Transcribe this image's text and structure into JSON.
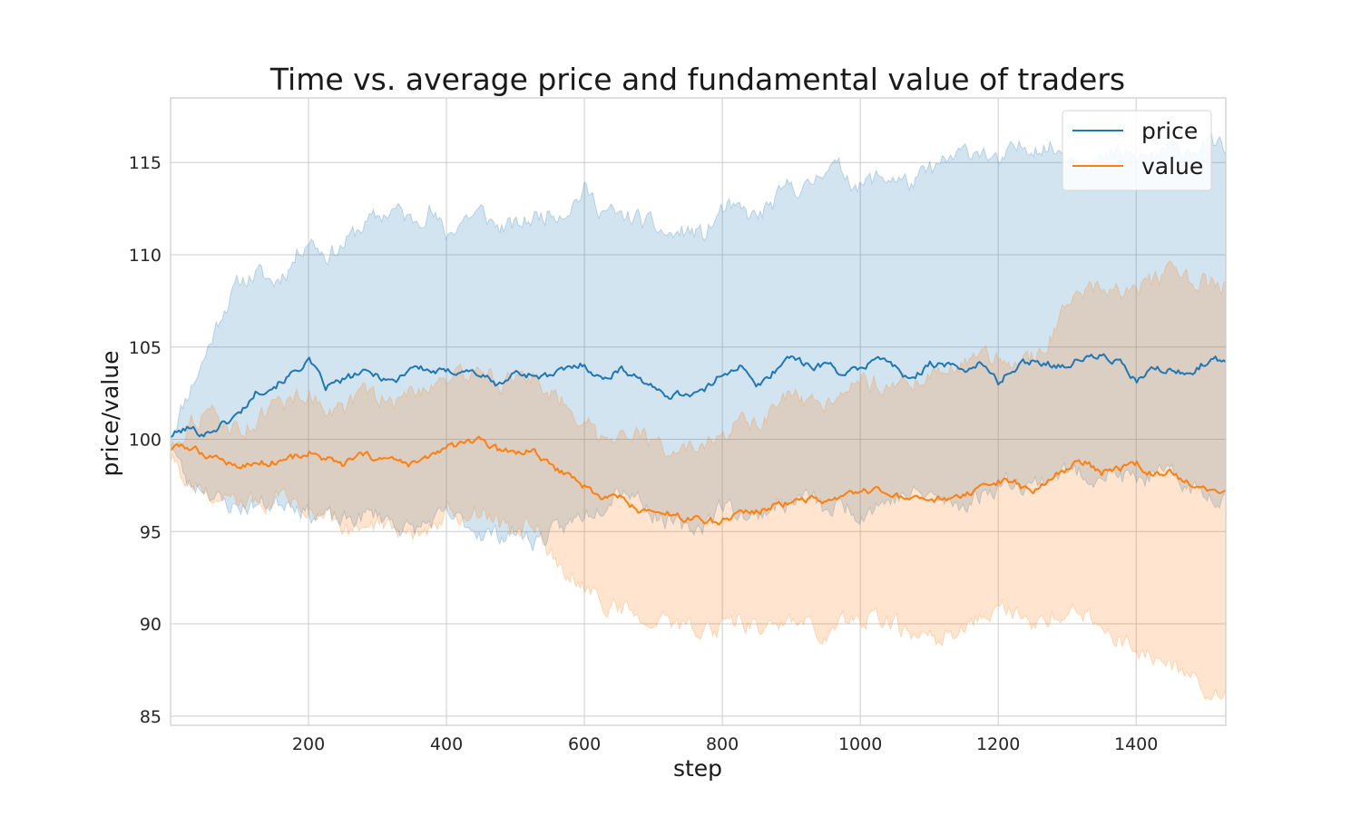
{
  "chart_data": {
    "type": "line",
    "title": "Time vs. average price and fundamental value of traders",
    "xlabel": "step",
    "ylabel": "price/value",
    "xlim": [
      0,
      1530
    ],
    "ylim": [
      84.5,
      118.5
    ],
    "xticks": [
      200,
      400,
      600,
      800,
      1000,
      1200,
      1400
    ],
    "yticks": [
      85,
      90,
      95,
      100,
      105,
      110,
      115
    ],
    "grid": true,
    "legend_position": "top-right",
    "x": [
      0,
      25,
      50,
      75,
      100,
      125,
      150,
      175,
      200,
      225,
      250,
      275,
      300,
      325,
      350,
      375,
      400,
      425,
      450,
      475,
      500,
      525,
      550,
      575,
      600,
      625,
      650,
      675,
      700,
      725,
      750,
      775,
      800,
      825,
      850,
      875,
      900,
      925,
      950,
      975,
      1000,
      1025,
      1050,
      1075,
      1100,
      1125,
      1150,
      1175,
      1200,
      1225,
      1250,
      1275,
      1300,
      1325,
      1350,
      1375,
      1400,
      1425,
      1450,
      1475,
      1500,
      1530
    ],
    "series": [
      {
        "name": "price",
        "color": "#1f77b4",
        "values": [
          100.2,
          100.6,
          100.3,
          100.8,
          101.4,
          102.6,
          102.9,
          103.5,
          104.3,
          102.8,
          103.2,
          103.6,
          103.5,
          103.1,
          104.0,
          103.7,
          103.6,
          103.8,
          103.5,
          102.9,
          103.6,
          103.5,
          103.4,
          103.8,
          104.1,
          103.2,
          103.8,
          103.5,
          102.7,
          102.4,
          102.5,
          102.6,
          103.6,
          104.0,
          102.8,
          103.7,
          104.6,
          103.9,
          104.1,
          103.6,
          103.7,
          104.6,
          103.9,
          103.1,
          104.2,
          104.0,
          103.8,
          104.1,
          103.1,
          103.9,
          104.3,
          104.1,
          104.0,
          104.4,
          104.5,
          104.2,
          103.1,
          103.8,
          103.7,
          103.5,
          104.2,
          104.3
        ],
        "upper": [
          100.3,
          102.5,
          104.5,
          107.0,
          108.5,
          109.0,
          108.5,
          109.5,
          111.0,
          110.0,
          110.5,
          111.5,
          112.0,
          112.5,
          111.8,
          112.5,
          111.0,
          112.0,
          112.3,
          111.5,
          111.5,
          112.0,
          112.3,
          112.5,
          113.5,
          112.5,
          112.0,
          112.0,
          111.5,
          111.0,
          111.3,
          111.0,
          112.5,
          112.3,
          112.0,
          112.8,
          113.8,
          113.5,
          115.0,
          114.5,
          113.7,
          114.2,
          114.2,
          113.8,
          114.5,
          115.0,
          115.5,
          115.8,
          114.8,
          115.7,
          116.0,
          115.8,
          115.5,
          115.3,
          115.0,
          115.5,
          115.2,
          115.4,
          115.6,
          115.8,
          116.0,
          115.8
        ],
        "lower": [
          100.0,
          97.5,
          97.5,
          96.5,
          96.3,
          96.5,
          96.5,
          96.8,
          96.0,
          95.8,
          95.5,
          95.8,
          96.0,
          95.5,
          95.0,
          95.5,
          95.8,
          95.5,
          95.0,
          94.8,
          95.0,
          94.5,
          94.8,
          95.3,
          96.0,
          96.5,
          97.5,
          97.0,
          96.0,
          95.5,
          95.0,
          95.5,
          96.5,
          96.0,
          95.8,
          96.5,
          96.5,
          97.0,
          96.0,
          96.5,
          96.0,
          96.5,
          96.8,
          97.0,
          97.0,
          96.5,
          96.5,
          97.0,
          97.5,
          97.8,
          97.5,
          98.0,
          98.3,
          98.0,
          98.2,
          98.0,
          97.8,
          98.0,
          98.0,
          97.5,
          97.0,
          97.0
        ]
      },
      {
        "name": "value",
        "color": "#ff7f0e",
        "values": [
          99.5,
          99.6,
          99.2,
          98.9,
          98.5,
          98.7,
          98.8,
          99.0,
          99.3,
          98.9,
          98.6,
          99.1,
          99.0,
          98.8,
          98.6,
          99.0,
          99.6,
          99.7,
          99.9,
          99.4,
          99.3,
          99.4,
          98.5,
          98.1,
          97.5,
          96.8,
          96.9,
          96.2,
          96.0,
          95.9,
          95.7,
          95.6,
          95.6,
          96.1,
          96.0,
          96.4,
          96.6,
          96.8,
          96.5,
          96.8,
          97.1,
          97.2,
          97.0,
          96.6,
          96.7,
          96.8,
          96.9,
          97.2,
          97.7,
          97.6,
          97.1,
          97.9,
          98.4,
          98.8,
          98.2,
          98.4,
          98.7,
          98.0,
          98.2,
          97.6,
          97.4,
          97.1
        ],
        "upper": [
          99.5,
          100.8,
          101.5,
          101.0,
          100.5,
          101.0,
          101.8,
          102.2,
          102.5,
          101.8,
          101.5,
          102.5,
          102.3,
          102.0,
          102.5,
          103.0,
          103.5,
          103.3,
          104.0,
          103.2,
          103.0,
          103.5,
          102.5,
          102.0,
          101.0,
          100.0,
          100.5,
          100.5,
          99.7,
          99.5,
          99.3,
          99.5,
          100.0,
          101.0,
          100.5,
          101.5,
          102.5,
          101.5,
          102.0,
          103.0,
          103.3,
          103.0,
          103.2,
          103.0,
          103.5,
          104.0,
          104.0,
          104.3,
          104.5,
          104.0,
          104.5,
          105.5,
          107.0,
          108.0,
          108.5,
          108.2,
          108.0,
          108.5,
          109.0,
          108.5,
          108.5,
          108.3
        ],
        "lower": [
          99.0,
          97.8,
          97.0,
          96.7,
          96.3,
          96.5,
          96.8,
          96.6,
          96.5,
          95.8,
          95.0,
          95.2,
          95.5,
          95.0,
          94.8,
          95.2,
          96.0,
          95.8,
          96.0,
          95.5,
          95.0,
          95.5,
          94.0,
          93.0,
          92.0,
          91.2,
          90.8,
          90.6,
          90.2,
          90.0,
          89.8,
          89.6,
          89.8,
          90.4,
          89.7,
          89.9,
          90.0,
          90.2,
          89.5,
          90.0,
          90.2,
          90.3,
          90.0,
          89.2,
          89.0,
          89.4,
          89.8,
          90.3,
          91.0,
          90.6,
          90.0,
          90.3,
          90.6,
          90.5,
          89.6,
          89.3,
          88.6,
          88.0,
          87.6,
          87.3,
          86.6,
          86.2
        ]
      }
    ]
  }
}
